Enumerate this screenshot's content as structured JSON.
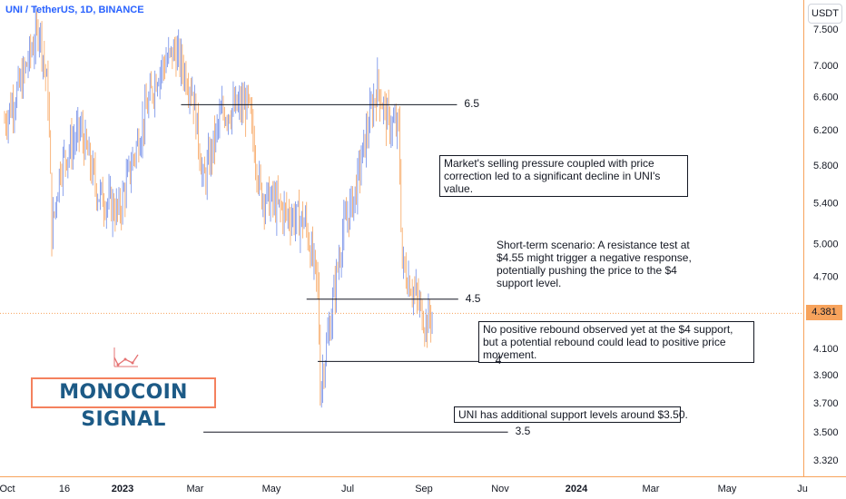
{
  "header": {
    "symbol": "UNI / TetherUS, 1D, BINANCE",
    "currency": "USDT",
    "last_price": "4.381"
  },
  "logo": {
    "text": "MONOCOIN SIGNAL",
    "icon": "chart-trend-icon"
  },
  "colors": {
    "up": "#6f8be8",
    "down": "#f7a35c",
    "axis": "#f7a35c",
    "line": "#131722"
  },
  "annotations": [
    "Market's selling pressure coupled with price correction led to a significant decline in UNI's value.",
    "Short-term scenario: A resistance test at $4.55 might trigger a negative response, potentially pushing the price to the $4 support level.",
    "No positive rebound observed yet at the $4 support, but a potential rebound could lead to positive price movement.",
    "UNI has additional support levels around $3.50."
  ],
  "chart_data": {
    "type": "candlestick",
    "y_scale": "log",
    "ylim": [
      3.2,
      7.8
    ],
    "xlim": [
      "2022-10-01",
      "2024-07-01"
    ],
    "x_ticks": [
      "Oct",
      "16",
      "2023",
      "Mar",
      "May",
      "Jul",
      "Sep",
      "Nov",
      "2024",
      "Mar",
      "May",
      "Ju"
    ],
    "y_ticks": [
      "7.500",
      "7.000",
      "6.600",
      "6.200",
      "5.800",
      "5.400",
      "5.000",
      "4.700",
      "4.100",
      "3.900",
      "3.700",
      "3.500",
      "3.320"
    ],
    "levels": [
      {
        "label": "6.5",
        "value": 6.5,
        "from": "2023-02-20",
        "to": "2023-09-30"
      },
      {
        "label": "4.5",
        "value": 4.5,
        "from": "2023-06-01",
        "to": "2023-10-01"
      },
      {
        "label": "4",
        "value": 4.0,
        "from": "2023-06-10",
        "to": "2023-10-25"
      },
      {
        "label": "3.5",
        "value": 3.5,
        "from": "2023-03-10",
        "to": "2023-11-10"
      }
    ],
    "current_price": 4.381,
    "price_path": [
      [
        "2022-10-01",
        6.3
      ],
      [
        "2022-10-15",
        6.8
      ],
      [
        "2022-10-29",
        7.55
      ],
      [
        "2022-11-05",
        6.6
      ],
      [
        "2022-11-08",
        5.1
      ],
      [
        "2022-11-15",
        5.8
      ],
      [
        "2022-12-01",
        6.2
      ],
      [
        "2022-12-15",
        5.5
      ],
      [
        "2023-01-01",
        5.3
      ],
      [
        "2023-01-15",
        6.0
      ],
      [
        "2023-02-01",
        6.9
      ],
      [
        "2023-02-15",
        7.2
      ],
      [
        "2023-03-01",
        6.7
      ],
      [
        "2023-03-10",
        5.6
      ],
      [
        "2023-03-25",
        6.4
      ],
      [
        "2023-04-15",
        6.5
      ],
      [
        "2023-04-25",
        5.5
      ],
      [
        "2023-05-15",
        5.3
      ],
      [
        "2023-05-31",
        5.2
      ],
      [
        "2023-06-10",
        4.6
      ],
      [
        "2023-06-12",
        3.8
      ],
      [
        "2023-06-20",
        4.3
      ],
      [
        "2023-06-30",
        5.1
      ],
      [
        "2023-07-10",
        5.5
      ],
      [
        "2023-07-20",
        6.2
      ],
      [
        "2023-07-28",
        6.75
      ],
      [
        "2023-08-05",
        6.3
      ],
      [
        "2023-08-14",
        6.2
      ],
      [
        "2023-08-17",
        4.8
      ],
      [
        "2023-08-25",
        4.6
      ],
      [
        "2023-09-05",
        4.3
      ],
      [
        "2023-09-10",
        4.381
      ]
    ]
  }
}
